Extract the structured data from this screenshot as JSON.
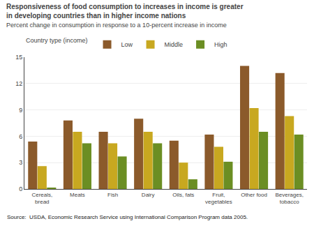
{
  "chart_data": {
    "type": "bar",
    "title": "Responsiveness of food consumption to increases in income is greater\nin developing countries than in higher income nations",
    "subtitle": "Percent change in consumption in response to a 10-percent increase in income",
    "source": "Source:  USDA, Economic Research Service using International Comparison Program data 2005.",
    "legend_title": "Country type (income)",
    "categories": [
      "Cereals,\nbread",
      "Meats",
      "Fish",
      "Dairy",
      "Oils, fats",
      "Fruit,\nvegetables",
      "Other food",
      "Beverages,\ntobacco"
    ],
    "series": [
      {
        "name": "Low",
        "color": "#8B5A2B",
        "values": [
          5.4,
          7.8,
          6.5,
          8.0,
          5.5,
          6.2,
          14.0,
          13.2
        ]
      },
      {
        "name": "Middle",
        "color": "#C8A820",
        "values": [
          2.6,
          6.5,
          5.2,
          6.5,
          3.0,
          4.8,
          9.2,
          8.3
        ]
      },
      {
        "name": "High",
        "color": "#6B8E23",
        "values": [
          0.1,
          5.2,
          3.7,
          5.2,
          1.1,
          3.1,
          6.5,
          6.2
        ]
      }
    ],
    "ylim": [
      0,
      15
    ],
    "yticks": [
      0,
      3,
      6,
      9,
      12,
      15
    ],
    "grid": true,
    "legend": "upper left"
  }
}
